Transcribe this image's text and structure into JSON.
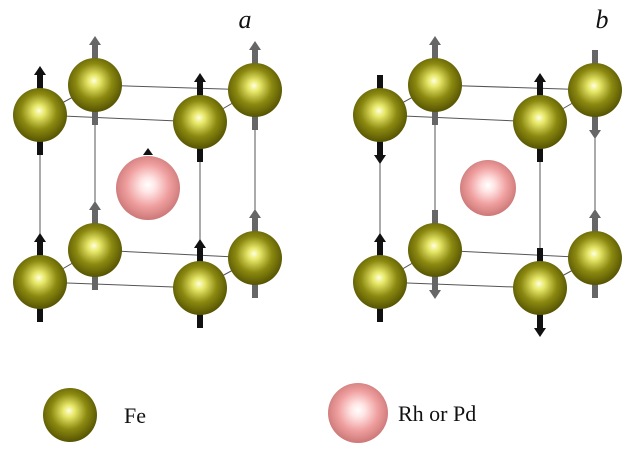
{
  "panels": [
    {
      "label": "a"
    },
    {
      "label": "b"
    }
  ],
  "legend": [
    {
      "label": "Fe"
    },
    {
      "label": "Rh or Pd"
    }
  ]
}
